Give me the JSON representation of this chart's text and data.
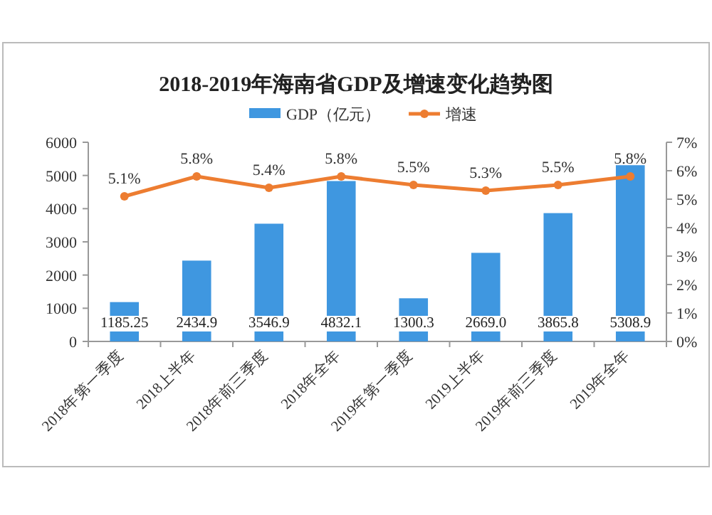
{
  "chart_data": {
    "type": "bar",
    "title": "2018-2019年海南省GDP及增速变化趋势图",
    "categories": [
      "2018年第一季度",
      "2018上半年",
      "2018年前三季度",
      "2018年全年",
      "2019年第一季度",
      "2019上半年",
      "2019年前三季度",
      "2019年全年"
    ],
    "series": [
      {
        "name": "GDP（亿元）",
        "color": "#3f97e0",
        "values": [
          1185.25,
          2434.9,
          3546.9,
          4832.1,
          1300.3,
          2669.0,
          3865.8,
          5308.9
        ],
        "value_labels": [
          "1185.25",
          "2434.9",
          "3546.9",
          "4832.1",
          "1300.3",
          "2669.0",
          "3865.8",
          "5308.9"
        ]
      },
      {
        "name": "增速",
        "type": "line",
        "axis": "y2",
        "color": "#ed7d31",
        "values": [
          5.1,
          5.8,
          5.4,
          5.8,
          5.5,
          5.3,
          5.5,
          5.8
        ],
        "value_labels": [
          "5.1%",
          "5.8%",
          "5.4%",
          "5.8%",
          "5.5%",
          "5.3%",
          "5.5%",
          "5.8%"
        ]
      }
    ],
    "ylim": [
      0,
      6000
    ],
    "yticks": [
      0,
      1000,
      2000,
      3000,
      4000,
      5000,
      6000
    ],
    "y2lim": [
      0,
      7
    ],
    "y2ticks": [
      {
        "value": 0,
        "label": "0%"
      },
      {
        "value": 1,
        "label": "1%"
      },
      {
        "value": 2,
        "label": "2%"
      },
      {
        "value": 3,
        "label": "3%"
      },
      {
        "value": 4,
        "label": "4%"
      },
      {
        "value": 5,
        "label": "5%"
      },
      {
        "value": 6,
        "label": "6%"
      },
      {
        "value": 7,
        "label": "7%"
      }
    ],
    "legend": "top",
    "marker": "circle",
    "grid": false
  }
}
